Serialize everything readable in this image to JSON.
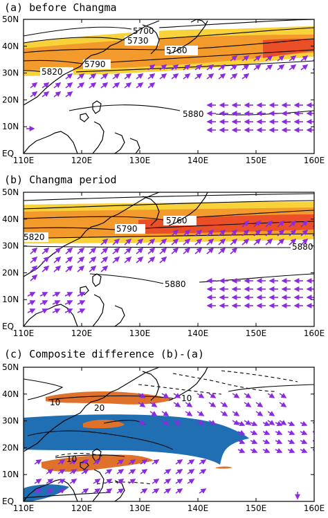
{
  "panels": [
    {
      "id": "a",
      "title": "(a) before Changma",
      "contour_labels": [
        "5700",
        "5730",
        "5760",
        "5790",
        "5820",
        "5880"
      ]
    },
    {
      "id": "b",
      "title": "(b) Changma period",
      "contour_labels": [
        "5760",
        "5790",
        "5820",
        "5880",
        "5880"
      ]
    },
    {
      "id": "c",
      "title": "(c) Composite difference (b)-(a)",
      "contour_labels": [
        "10",
        "10",
        "20",
        "10"
      ]
    }
  ],
  "axes": {
    "x_ticks": [
      "110E",
      "120E",
      "130E",
      "140E",
      "150E",
      "160E"
    ],
    "y_ticks": [
      "50N",
      "40N",
      "30N",
      "20N",
      "10N",
      "EQ"
    ],
    "lon_range": [
      110,
      160
    ],
    "lat_range": [
      0,
      50
    ]
  },
  "colors": {
    "jet_yellow": "#f8d23a",
    "jet_orange": "#f39a2c",
    "jet_red": "#ea4f27",
    "vector": "#8a2be2",
    "diff_orange": "#e0712a",
    "diff_blue": "#1f6fb2",
    "coast": "#000000"
  },
  "icons": {
    "arrow": "wind-vector-icon"
  }
}
